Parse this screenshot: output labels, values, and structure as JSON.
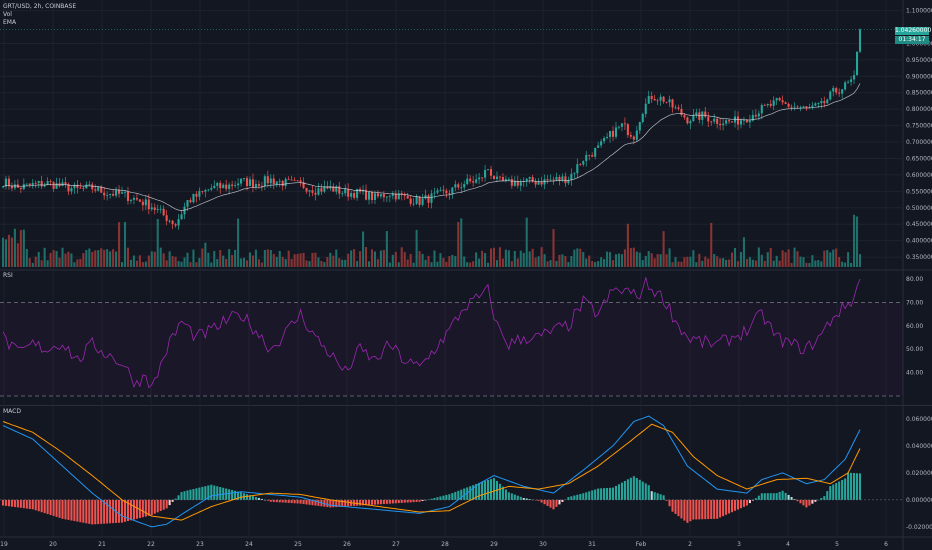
{
  "legend": {
    "symbol": "GRT/USD, 2h, COINBASE",
    "vol": "Vol",
    "ema": "EMA",
    "rsi": "RSI",
    "macd": "MACD"
  },
  "price_tags": {
    "last": "1.04260000",
    "countdown": "01:34:17"
  },
  "colors": {
    "bg": "#131722",
    "grid": "#1e222d",
    "up": "#26a69a",
    "down": "#ef5350",
    "ema": "#d1d4dc",
    "rsi": "#9c27b0",
    "macd": "#2196f3",
    "signal": "#ff9800"
  },
  "chart_data": [
    {
      "type": "candlestick",
      "pane": "price",
      "y_ticks": [
        "1.10000000",
        "1.00000000",
        "0.95000000",
        "0.90000000",
        "0.85000000",
        "0.80000000",
        "0.75000000",
        "0.70000000",
        "0.65000000",
        "0.60000000",
        "0.55000000",
        "0.50000000",
        "0.45000000",
        "0.40000000",
        "0.35000000"
      ],
      "y_tick_values": [
        1.1,
        1.0,
        0.95,
        0.9,
        0.85,
        0.8,
        0.75,
        0.7,
        0.65,
        0.6,
        0.55,
        0.5,
        0.45,
        0.4,
        0.35
      ],
      "ylim": [
        0.335,
        1.12
      ],
      "close_anchors": [
        [
          0,
          0.58
        ],
        [
          5,
          0.56
        ],
        [
          10,
          0.57
        ],
        [
          15,
          0.575
        ],
        [
          20,
          0.565
        ],
        [
          25,
          0.555
        ],
        [
          30,
          0.56
        ],
        [
          35,
          0.545
        ],
        [
          40,
          0.54
        ],
        [
          45,
          0.525
        ],
        [
          50,
          0.505
        ],
        [
          55,
          0.47
        ],
        [
          58,
          0.45
        ],
        [
          62,
          0.52
        ],
        [
          66,
          0.54
        ],
        [
          70,
          0.56
        ],
        [
          75,
          0.565
        ],
        [
          80,
          0.58
        ],
        [
          85,
          0.575
        ],
        [
          90,
          0.585
        ],
        [
          95,
          0.575
        ],
        [
          100,
          0.57
        ],
        [
          105,
          0.555
        ],
        [
          110,
          0.56
        ],
        [
          115,
          0.545
        ],
        [
          120,
          0.545
        ],
        [
          125,
          0.53
        ],
        [
          130,
          0.545
        ],
        [
          135,
          0.53
        ],
        [
          140,
          0.52
        ],
        [
          145,
          0.535
        ],
        [
          150,
          0.55
        ],
        [
          155,
          0.575
        ],
        [
          160,
          0.585
        ],
        [
          163,
          0.62
        ],
        [
          166,
          0.58
        ],
        [
          170,
          0.575
        ],
        [
          175,
          0.58
        ],
        [
          180,
          0.58
        ],
        [
          185,
          0.585
        ],
        [
          190,
          0.59
        ],
        [
          195,
          0.65
        ],
        [
          200,
          0.68
        ],
        [
          205,
          0.73
        ],
        [
          208,
          0.75
        ],
        [
          212,
          0.72
        ],
        [
          215,
          0.8
        ],
        [
          218,
          0.84
        ],
        [
          222,
          0.83
        ],
        [
          226,
          0.8
        ],
        [
          230,
          0.77
        ],
        [
          235,
          0.78
        ],
        [
          240,
          0.765
        ],
        [
          245,
          0.76
        ],
        [
          250,
          0.775
        ],
        [
          255,
          0.8
        ],
        [
          260,
          0.82
        ],
        [
          265,
          0.81
        ],
        [
          270,
          0.8
        ],
        [
          275,
          0.81
        ],
        [
          279,
          0.85
        ],
        [
          283,
          0.87
        ],
        [
          286,
          0.89
        ],
        [
          288,
          1.0426
        ]
      ],
      "last_close": 1.0426
    },
    {
      "type": "bar",
      "pane": "volume",
      "series": [
        {
          "name": "Vol"
        }
      ]
    },
    {
      "type": "line",
      "pane": "rsi",
      "y_ticks": [
        "80.00",
        "70.00",
        "60.00",
        "50.00",
        "40.00"
      ],
      "y_tick_values": [
        80,
        70,
        60,
        50,
        40
      ],
      "ylim": [
        27,
        83
      ],
      "bands": [
        70,
        30
      ],
      "anchors": [
        [
          0,
          55
        ],
        [
          5,
          48
        ],
        [
          10,
          52
        ],
        [
          15,
          50
        ],
        [
          20,
          53
        ],
        [
          25,
          45
        ],
        [
          30,
          52
        ],
        [
          35,
          48
        ],
        [
          40,
          44
        ],
        [
          45,
          35
        ],
        [
          48,
          40
        ],
        [
          50,
          33
        ],
        [
          55,
          50
        ],
        [
          60,
          62
        ],
        [
          65,
          55
        ],
        [
          70,
          58
        ],
        [
          75,
          62
        ],
        [
          80,
          65
        ],
        [
          85,
          58
        ],
        [
          90,
          50
        ],
        [
          95,
          57
        ],
        [
          100,
          65
        ],
        [
          105,
          55
        ],
        [
          110,
          48
        ],
        [
          115,
          40
        ],
        [
          120,
          50
        ],
        [
          125,
          45
        ],
        [
          130,
          52
        ],
        [
          135,
          45
        ],
        [
          140,
          42
        ],
        [
          145,
          50
        ],
        [
          150,
          58
        ],
        [
          155,
          68
        ],
        [
          160,
          72
        ],
        [
          163,
          75
        ],
        [
          166,
          60
        ],
        [
          170,
          52
        ],
        [
          175,
          55
        ],
        [
          180,
          55
        ],
        [
          185,
          58
        ],
        [
          190,
          60
        ],
        [
          195,
          70
        ],
        [
          200,
          65
        ],
        [
          205,
          75
        ],
        [
          210,
          75
        ],
        [
          213,
          72
        ],
        [
          216,
          78
        ],
        [
          220,
          74
        ],
        [
          223,
          70
        ],
        [
          226,
          62
        ],
        [
          230,
          55
        ],
        [
          235,
          53
        ],
        [
          240,
          52
        ],
        [
          245,
          55
        ],
        [
          250,
          58
        ],
        [
          255,
          65
        ],
        [
          260,
          55
        ],
        [
          265,
          52
        ],
        [
          270,
          50
        ],
        [
          275,
          56
        ],
        [
          279,
          64
        ],
        [
          283,
          68
        ],
        [
          286,
          72
        ],
        [
          288,
          80
        ]
      ]
    },
    {
      "type": "line",
      "pane": "macd",
      "y_ticks": [
        "0.06000000",
        "0.04000000",
        "0.02000000",
        "0.00000000",
        "-0.02000000"
      ],
      "y_tick_values": [
        0.06,
        0.04,
        0.02,
        0.0,
        -0.02
      ],
      "ylim": [
        -0.026,
        0.068
      ],
      "series": [
        {
          "name": "MACD",
          "anchors": [
            [
              0,
              0.055
            ],
            [
              10,
              0.045
            ],
            [
              20,
              0.025
            ],
            [
              30,
              0.005
            ],
            [
              40,
              -0.012
            ],
            [
              50,
              -0.02
            ],
            [
              55,
              -0.018
            ],
            [
              62,
              -0.008
            ],
            [
              70,
              0.003
            ],
            [
              80,
              0.006
            ],
            [
              90,
              0.004
            ],
            [
              100,
              0.002
            ],
            [
              110,
              -0.004
            ],
            [
              120,
              -0.006
            ],
            [
              130,
              -0.008
            ],
            [
              140,
              -0.01
            ],
            [
              150,
              -0.005
            ],
            [
              160,
              0.012
            ],
            [
              165,
              0.018
            ],
            [
              175,
              0.01
            ],
            [
              185,
              0.005
            ],
            [
              195,
              0.022
            ],
            [
              205,
              0.04
            ],
            [
              212,
              0.058
            ],
            [
              217,
              0.062
            ],
            [
              222,
              0.055
            ],
            [
              230,
              0.025
            ],
            [
              240,
              0.008
            ],
            [
              250,
              0.005
            ],
            [
              255,
              0.015
            ],
            [
              262,
              0.02
            ],
            [
              270,
              0.012
            ],
            [
              276,
              0.015
            ],
            [
              283,
              0.03
            ],
            [
              288,
              0.052
            ]
          ]
        },
        {
          "name": "Signal",
          "anchors": [
            [
              0,
              0.058
            ],
            [
              10,
              0.05
            ],
            [
              20,
              0.035
            ],
            [
              30,
              0.018
            ],
            [
              40,
              0.0
            ],
            [
              50,
              -0.012
            ],
            [
              60,
              -0.015
            ],
            [
              70,
              -0.005
            ],
            [
              80,
              0.002
            ],
            [
              90,
              0.005
            ],
            [
              100,
              0.004
            ],
            [
              110,
              0.0
            ],
            [
              120,
              -0.003
            ],
            [
              130,
              -0.006
            ],
            [
              140,
              -0.009
            ],
            [
              150,
              -0.008
            ],
            [
              160,
              0.003
            ],
            [
              170,
              0.01
            ],
            [
              180,
              0.008
            ],
            [
              190,
              0.012
            ],
            [
              200,
              0.025
            ],
            [
              210,
              0.042
            ],
            [
              218,
              0.056
            ],
            [
              225,
              0.05
            ],
            [
              232,
              0.032
            ],
            [
              240,
              0.018
            ],
            [
              250,
              0.008
            ],
            [
              260,
              0.015
            ],
            [
              270,
              0.016
            ],
            [
              278,
              0.012
            ],
            [
              284,
              0.02
            ],
            [
              288,
              0.038
            ]
          ]
        }
      ],
      "histogram": "MACD minus Signal"
    }
  ],
  "x_ticks": [
    "19",
    "20",
    "21",
    "22",
    "23",
    "24",
    "25",
    "26",
    "27",
    "28",
    "29",
    "30",
    "31",
    "Feb",
    "2",
    "3",
    "4",
    "5",
    "6"
  ]
}
